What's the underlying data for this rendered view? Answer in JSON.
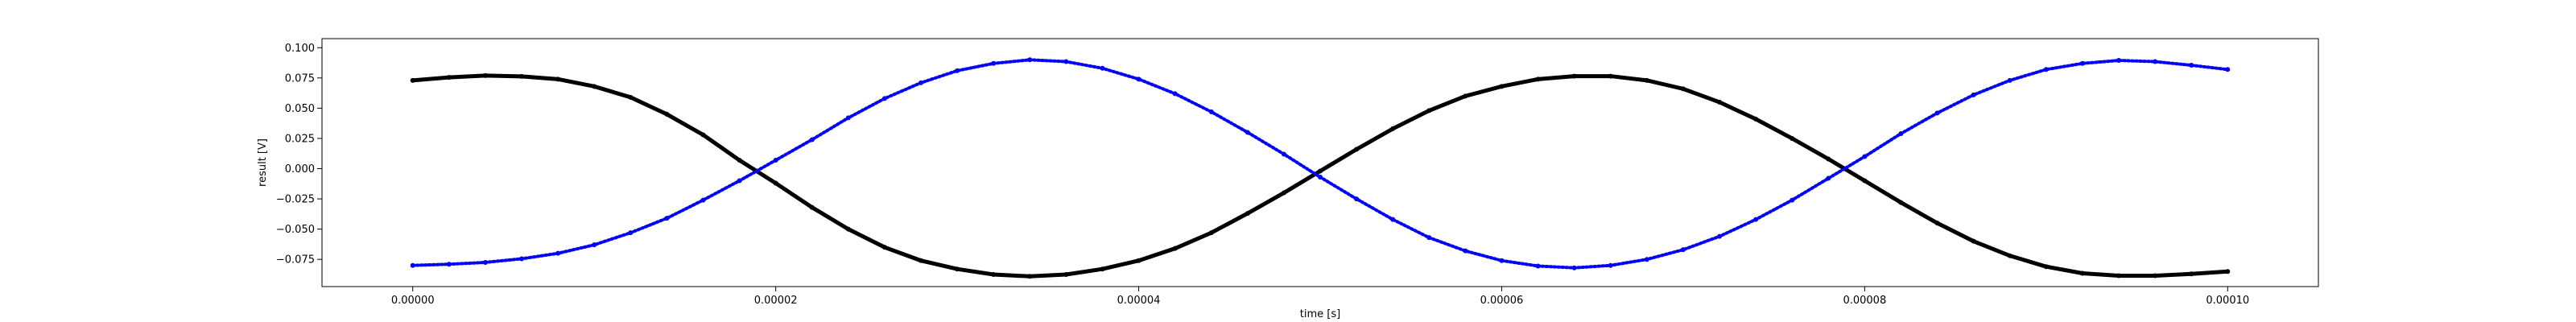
{
  "chart_data": {
    "type": "scatter",
    "title": "",
    "xlabel": "time [s]",
    "ylabel": "result [V]",
    "xlim": [
      -5e-06,
      0.000105
    ],
    "ylim": [
      -0.0975,
      0.1075
    ],
    "grid": false,
    "legend": "none",
    "x_ticks": [
      {
        "value": 0.0,
        "label": "0.00000"
      },
      {
        "value": 2e-05,
        "label": "0.00002"
      },
      {
        "value": 4e-05,
        "label": "0.00004"
      },
      {
        "value": 6e-05,
        "label": "0.00006"
      },
      {
        "value": 8e-05,
        "label": "0.00008"
      },
      {
        "value": 0.0001,
        "label": "0.00010"
      }
    ],
    "y_ticks": [
      {
        "value": -0.075,
        "label": "−0.075"
      },
      {
        "value": -0.05,
        "label": "−0.050"
      },
      {
        "value": -0.025,
        "label": "−0.025"
      },
      {
        "value": 0.0,
        "label": "0.000"
      },
      {
        "value": 0.025,
        "label": "0.025"
      },
      {
        "value": 0.05,
        "label": "0.050"
      },
      {
        "value": 0.075,
        "label": "0.075"
      },
      {
        "value": 0.1,
        "label": "0.100"
      }
    ],
    "series": [
      {
        "color": "#000000",
        "marker": "dot",
        "points": [
          [
            0.0,
            0.073
          ],
          [
            2e-06,
            0.0755
          ],
          [
            4e-06,
            0.077
          ],
          [
            6e-06,
            0.0763
          ],
          [
            8e-06,
            0.074
          ],
          [
            1e-05,
            0.068
          ],
          [
            1.2e-05,
            0.059
          ],
          [
            1.4e-05,
            0.045
          ],
          [
            1.6e-05,
            0.028
          ],
          [
            1.8e-05,
            0.007
          ],
          [
            2e-05,
            -0.012
          ],
          [
            2.2e-05,
            -0.032
          ],
          [
            2.4e-05,
            -0.05
          ],
          [
            2.6e-05,
            -0.065
          ],
          [
            2.8e-05,
            -0.076
          ],
          [
            3e-05,
            -0.083
          ],
          [
            3.2e-05,
            -0.0875
          ],
          [
            3.4e-05,
            -0.089
          ],
          [
            3.6e-05,
            -0.0875
          ],
          [
            3.8e-05,
            -0.083
          ],
          [
            4e-05,
            -0.076
          ],
          [
            4.2e-05,
            -0.066
          ],
          [
            4.4e-05,
            -0.053
          ],
          [
            4.6e-05,
            -0.037
          ],
          [
            4.8e-05,
            -0.02
          ],
          [
            5e-05,
            -0.002
          ],
          [
            5.2e-05,
            0.016
          ],
          [
            5.4e-05,
            0.033
          ],
          [
            5.6e-05,
            0.048
          ],
          [
            5.8e-05,
            0.06
          ],
          [
            6e-05,
            0.068
          ],
          [
            6.2e-05,
            0.074
          ],
          [
            6.4e-05,
            0.0765
          ],
          [
            6.6e-05,
            0.0765
          ],
          [
            6.8e-05,
            0.073
          ],
          [
            7e-05,
            0.066
          ],
          [
            7.2e-05,
            0.055
          ],
          [
            7.4e-05,
            0.041
          ],
          [
            7.6e-05,
            0.025
          ],
          [
            7.8e-05,
            0.008
          ],
          [
            8e-05,
            -0.01
          ],
          [
            8.2e-05,
            -0.028
          ],
          [
            8.4e-05,
            -0.045
          ],
          [
            8.6e-05,
            -0.06
          ],
          [
            8.8e-05,
            -0.072
          ],
          [
            9e-05,
            -0.081
          ],
          [
            9.2e-05,
            -0.0865
          ],
          [
            9.4e-05,
            -0.0885
          ],
          [
            9.6e-05,
            -0.0885
          ],
          [
            9.8e-05,
            -0.087
          ],
          [
            0.0001,
            -0.085
          ]
        ]
      },
      {
        "color": "#0000ff",
        "marker": "dot",
        "points": [
          [
            0.0,
            -0.08
          ],
          [
            2e-06,
            -0.079
          ],
          [
            4e-06,
            -0.0775
          ],
          [
            6e-06,
            -0.0745
          ],
          [
            8e-06,
            -0.07
          ],
          [
            1e-05,
            -0.063
          ],
          [
            1.2e-05,
            -0.053
          ],
          [
            1.4e-05,
            -0.041
          ],
          [
            1.6e-05,
            -0.026
          ],
          [
            1.8e-05,
            -0.01
          ],
          [
            2e-05,
            0.007
          ],
          [
            2.2e-05,
            0.024
          ],
          [
            2.4e-05,
            0.042
          ],
          [
            2.6e-05,
            0.058
          ],
          [
            2.8e-05,
            0.071
          ],
          [
            3e-05,
            0.081
          ],
          [
            3.2e-05,
            0.087
          ],
          [
            3.4e-05,
            0.09
          ],
          [
            3.6e-05,
            0.0885
          ],
          [
            3.8e-05,
            0.083
          ],
          [
            4e-05,
            0.074
          ],
          [
            4.2e-05,
            0.062
          ],
          [
            4.4e-05,
            0.047
          ],
          [
            4.6e-05,
            0.03
          ],
          [
            4.8e-05,
            0.012
          ],
          [
            5e-05,
            -0.007
          ],
          [
            5.2e-05,
            -0.025
          ],
          [
            5.4e-05,
            -0.042
          ],
          [
            5.6e-05,
            -0.057
          ],
          [
            5.8e-05,
            -0.068
          ],
          [
            6e-05,
            -0.076
          ],
          [
            6.2e-05,
            -0.0805
          ],
          [
            6.4e-05,
            -0.082
          ],
          [
            6.6e-05,
            -0.08
          ],
          [
            6.8e-05,
            -0.075
          ],
          [
            7e-05,
            -0.067
          ],
          [
            7.2e-05,
            -0.056
          ],
          [
            7.4e-05,
            -0.042
          ],
          [
            7.6e-05,
            -0.026
          ],
          [
            7.8e-05,
            -0.008
          ],
          [
            8e-05,
            0.01
          ],
          [
            8.2e-05,
            0.029
          ],
          [
            8.4e-05,
            0.046
          ],
          [
            8.6e-05,
            0.061
          ],
          [
            8.8e-05,
            0.073
          ],
          [
            9e-05,
            0.082
          ],
          [
            9.2e-05,
            0.087
          ],
          [
            9.4e-05,
            0.0895
          ],
          [
            9.6e-05,
            0.0885
          ],
          [
            9.8e-05,
            0.0855
          ],
          [
            0.0001,
            0.082
          ]
        ]
      }
    ]
  }
}
